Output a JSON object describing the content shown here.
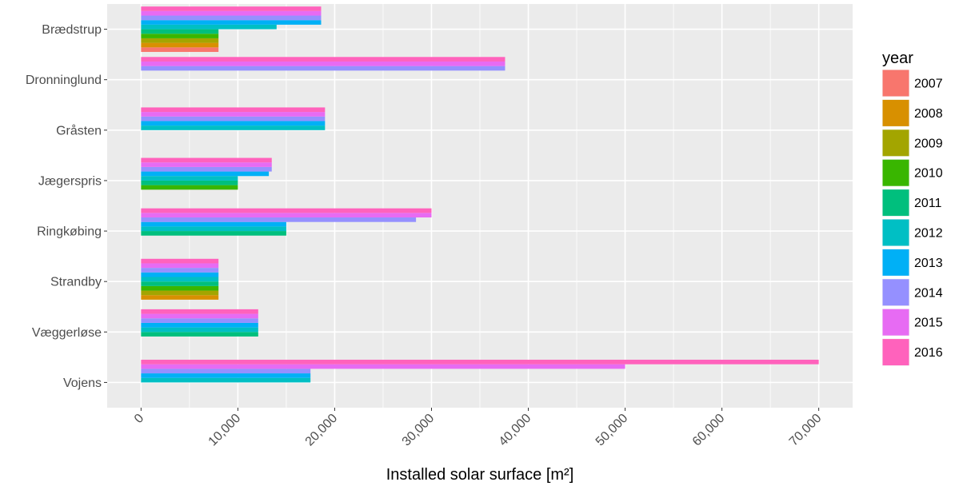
{
  "chart_data": {
    "type": "bar",
    "orientation": "horizontal",
    "position": "dodge",
    "xlabel": "Installed solar surface [m²]",
    "ylabel": "",
    "xlim": [
      -3500,
      73500
    ],
    "xticks": [
      0,
      10000,
      20000,
      30000,
      40000,
      50000,
      60000,
      70000
    ],
    "xtick_labels": [
      "0",
      "10,000",
      "20,000",
      "30,000",
      "40,000",
      "50,000",
      "60,000",
      "70,000"
    ],
    "grid": true,
    "legend_position": "right",
    "legend_title": "year",
    "categories": [
      "Brædstrup",
      "Dronninglund",
      "Gråsten",
      "Jægerspris",
      "Ringkøbing",
      "Strandby",
      "Væggerløse",
      "Vojens"
    ],
    "series": [
      {
        "name": "2007",
        "color": "#F8766D",
        "values": [
          8000,
          null,
          null,
          null,
          null,
          null,
          null,
          null
        ]
      },
      {
        "name": "2008",
        "color": "#D89000",
        "values": [
          8000,
          null,
          null,
          null,
          null,
          8000,
          null,
          null
        ]
      },
      {
        "name": "2009",
        "color": "#A3A500",
        "values": [
          8000,
          null,
          null,
          null,
          null,
          8000,
          null,
          null
        ]
      },
      {
        "name": "2010",
        "color": "#39B600",
        "values": [
          8000,
          null,
          null,
          10000,
          null,
          8000,
          null,
          null
        ]
      },
      {
        "name": "2011",
        "color": "#00BF7D",
        "values": [
          8000,
          null,
          null,
          10000,
          15000,
          8000,
          12100,
          null
        ]
      },
      {
        "name": "2012",
        "color": "#00BFC4",
        "values": [
          14000,
          null,
          19000,
          10000,
          15000,
          8000,
          12100,
          17500
        ]
      },
      {
        "name": "2013",
        "color": "#00B0F6",
        "values": [
          18600,
          null,
          19000,
          13200,
          15000,
          8000,
          12100,
          17500
        ]
      },
      {
        "name": "2014",
        "color": "#9590FF",
        "values": [
          18600,
          37600,
          19000,
          13500,
          28400,
          8000,
          12100,
          17500
        ]
      },
      {
        "name": "2015",
        "color": "#E76BF3",
        "values": [
          18600,
          37600,
          19000,
          13500,
          30000,
          8000,
          12100,
          50000
        ]
      },
      {
        "name": "2016",
        "color": "#FF62BC",
        "values": [
          18600,
          37600,
          19000,
          13500,
          30000,
          8000,
          12100,
          70000
        ]
      }
    ]
  }
}
